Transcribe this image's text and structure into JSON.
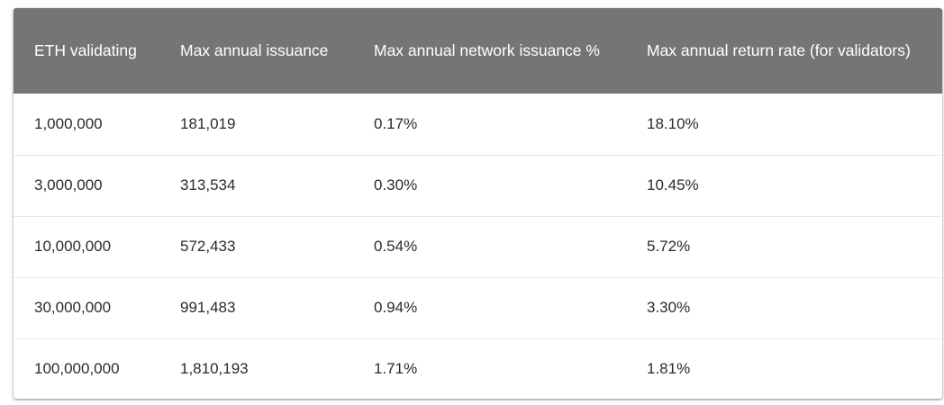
{
  "table": {
    "headers": [
      "ETH validating",
      "Max annual issuance",
      "Max annual network issuance %",
      "Max annual return rate (for validators)"
    ],
    "rows": [
      [
        "1,000,000",
        "181,019",
        "0.17%",
        "18.10%"
      ],
      [
        "3,000,000",
        "313,534",
        "0.30%",
        "10.45%"
      ],
      [
        "10,000,000",
        "572,433",
        "0.54%",
        "5.72%"
      ],
      [
        "30,000,000",
        "991,483",
        "0.94%",
        "3.30%"
      ],
      [
        "100,000,000",
        "1,810,193",
        "1.71%",
        "1.81%"
      ]
    ]
  },
  "colors": {
    "header_bg": "#757575",
    "header_text": "#ffffff",
    "body_text": "#2b2b2b",
    "row_divider": "#e8e8e8"
  }
}
